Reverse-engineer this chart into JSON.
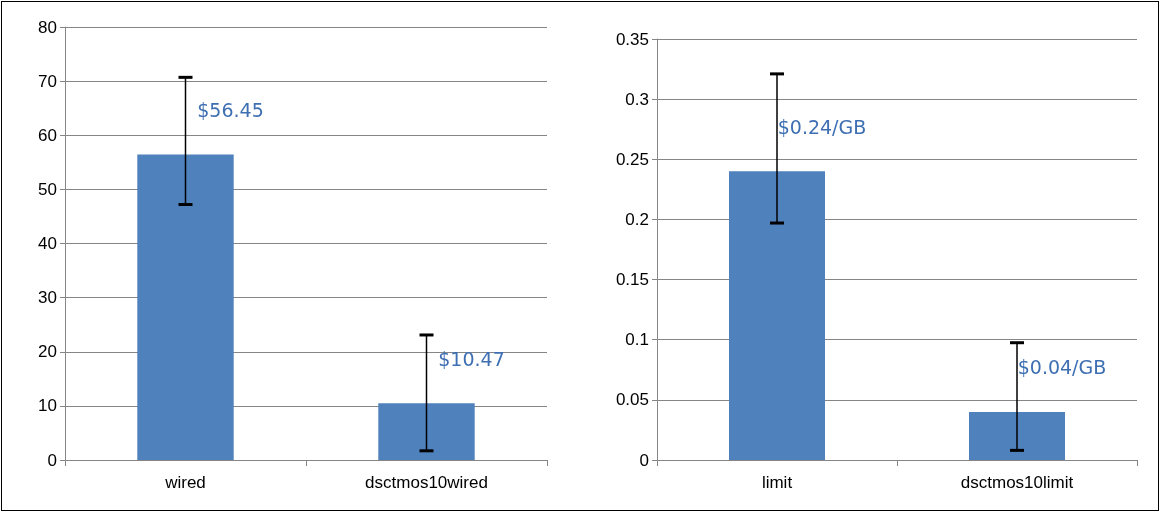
{
  "chart_data": [
    {
      "type": "bar",
      "categories": [
        "wired",
        "dsctmos10wired"
      ],
      "values": [
        56.45,
        10.47
      ],
      "color": "#4f81bd",
      "errors": [
        [
          47.2,
          70.7
        ],
        [
          1.7,
          23.1
        ]
      ],
      "value_labels": [
        "$56.45",
        "$10.47"
      ],
      "ylim": [
        0,
        80
      ],
      "yticks": [
        0,
        10,
        20,
        30,
        40,
        50,
        60,
        70,
        80
      ],
      "grid": "y"
    },
    {
      "type": "bar",
      "categories": [
        "limit",
        "dsctmos10limit"
      ],
      "values": [
        0.24,
        0.04
      ],
      "color": "#4f81bd",
      "errors": [
        [
          0.197,
          0.321
        ],
        [
          0.008,
          0.0975
        ]
      ],
      "value_labels": [
        "$0.24/GB",
        "$0.04/GB"
      ],
      "ylim": [
        0,
        0.35
      ],
      "yticks": [
        0,
        0.05,
        0.1,
        0.15,
        0.2,
        0.25,
        0.3,
        0.35
      ],
      "grid": "y"
    }
  ]
}
